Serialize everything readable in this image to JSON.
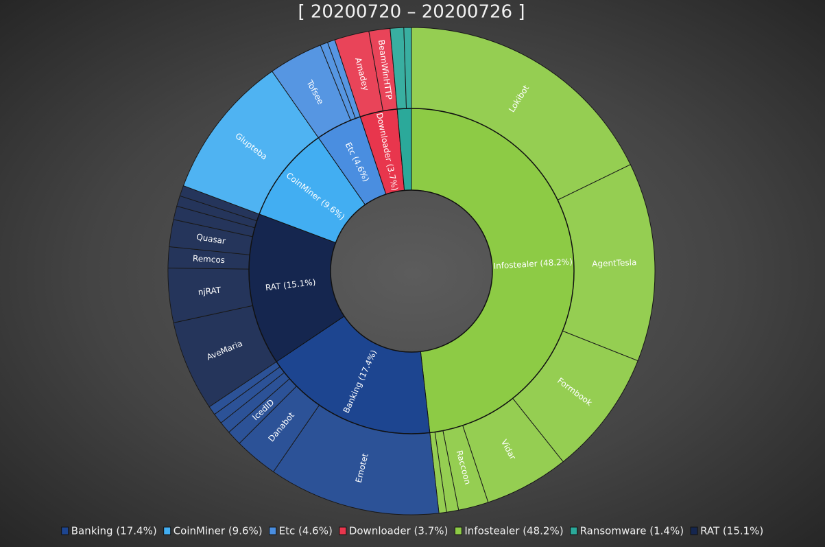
{
  "chart_data": {
    "type": "sunburst",
    "title": "[ 20200720 – 20200726 ]",
    "categories": [
      "Infostealer (48.2%)",
      "Banking (17.4%)",
      "RAT (15.1%)",
      "CoinMiner (9.6%)",
      "Etc (4.6%)",
      "Downloader (3.7%)",
      "Ransomware (1.4%)"
    ],
    "values": [
      48.2,
      17.4,
      15.1,
      9.6,
      4.6,
      3.7,
      1.4
    ],
    "colors": [
      "#8dcb45",
      "#1d4590",
      "#15264f",
      "#42aef2",
      "#4a8ee0",
      "#e8364d",
      "#2ba99a"
    ],
    "children": [
      {
        "labels": [
          "Lokibot",
          "AgentTesla",
          "Formbook",
          "Vidar",
          "Raccoon",
          null,
          null
        ],
        "values": [
          17.8,
          13.2,
          8.3,
          5.6,
          2.0,
          0.8,
          0.5
        ]
      },
      {
        "labels": [
          "Emotet",
          "Danabot",
          "IcedID",
          null,
          null,
          null
        ],
        "values": [
          11.4,
          2.9,
          1.0,
          0.8,
          0.7,
          0.6
        ]
      },
      {
        "labels": [
          "AveMaria",
          "njRAT",
          "Remcos",
          "Quasar",
          null,
          null,
          null
        ],
        "values": [
          6.0,
          3.6,
          1.4,
          1.8,
          0.9,
          0.7,
          0.7
        ]
      },
      {
        "labels": [
          "Glupteba"
        ],
        "values": [
          9.6
        ]
      },
      {
        "labels": [
          "Tofsee",
          null,
          null
        ],
        "values": [
          3.6,
          0.5,
          0.5
        ]
      },
      {
        "labels": [
          "Amadey",
          "BeamWinHTTP"
        ],
        "values": [
          2.3,
          1.4
        ]
      },
      {
        "labels": [
          null,
          null
        ],
        "values": [
          0.9,
          0.5
        ]
      }
    ],
    "legend": [
      "Banking (17.4%)",
      "CoinMiner (9.6%)",
      "Etc (4.6%)",
      "Downloader (3.7%)",
      "Infostealer (48.2%)",
      "Ransomware (1.4%)",
      "RAT (15.1%)"
    ]
  }
}
